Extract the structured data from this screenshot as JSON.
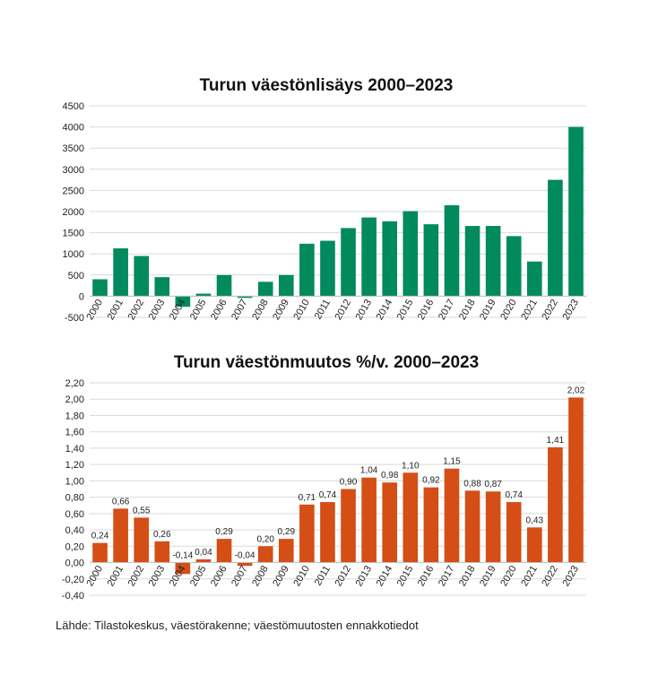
{
  "chart_data": [
    {
      "type": "bar",
      "title": "Turun väestönlisäys 2000–2023",
      "categories": [
        "2000",
        "2001",
        "2002",
        "2003",
        "2004",
        "2005",
        "2006",
        "2007",
        "2008",
        "2009",
        "2010",
        "2011",
        "2012",
        "2013",
        "2014",
        "2015",
        "2016",
        "2017",
        "2018",
        "2019",
        "2020",
        "2021",
        "2022",
        "2023"
      ],
      "values": [
        400,
        1130,
        950,
        450,
        -250,
        60,
        500,
        -40,
        340,
        500,
        1240,
        1310,
        1610,
        1860,
        1770,
        2010,
        1700,
        2150,
        1660,
        1660,
        1420,
        820,
        2750,
        4000
      ],
      "yticks": [
        "-500",
        "0",
        "500",
        "1000",
        "1500",
        "2000",
        "2500",
        "3000",
        "3500",
        "4000",
        "4500"
      ],
      "ylim": [
        -500,
        4500
      ],
      "color": "#008a5e",
      "grid": true,
      "data_labels": false
    },
    {
      "type": "bar",
      "title": "Turun väestönmuutos %/v. 2000–2023",
      "categories": [
        "2000",
        "2001",
        "2002",
        "2003",
        "2004",
        "2005",
        "2006",
        "2007",
        "2008",
        "2009",
        "2010",
        "2011",
        "2012",
        "2013",
        "2014",
        "2015",
        "2016",
        "2017",
        "2018",
        "2019",
        "2020",
        "2021",
        "2022",
        "2023"
      ],
      "values": [
        0.24,
        0.66,
        0.55,
        0.26,
        -0.14,
        0.04,
        0.29,
        -0.04,
        0.2,
        0.29,
        0.71,
        0.74,
        0.9,
        1.04,
        0.98,
        1.1,
        0.92,
        1.15,
        0.88,
        0.87,
        0.74,
        0.43,
        1.41,
        2.02
      ],
      "value_labels": [
        "0,24",
        "0,66",
        "0,55",
        "0,26",
        "-0,14",
        "0,04",
        "0,29",
        "-0,04",
        "0,20",
        "0,29",
        "0,71",
        "0,74",
        "0,90",
        "1,04",
        "0,98",
        "1,10",
        "0,92",
        "1,15",
        "0,88",
        "0,87",
        "0,74",
        "0,43",
        "1,41",
        "2,02"
      ],
      "yticks": [
        "-0,40",
        "-0,20",
        "0,00",
        "0,20",
        "0,40",
        "0,60",
        "0,80",
        "1,00",
        "1,20",
        "1,40",
        "1,60",
        "1,80",
        "2,00",
        "2,20"
      ],
      "ylim": [
        -0.4,
        2.2
      ],
      "color": "#d44e16",
      "grid": true,
      "data_labels": true
    }
  ],
  "source_note": "Lähde: Tilastokeskus, väestörakenne; väestömuutosten ennakkotiedot"
}
